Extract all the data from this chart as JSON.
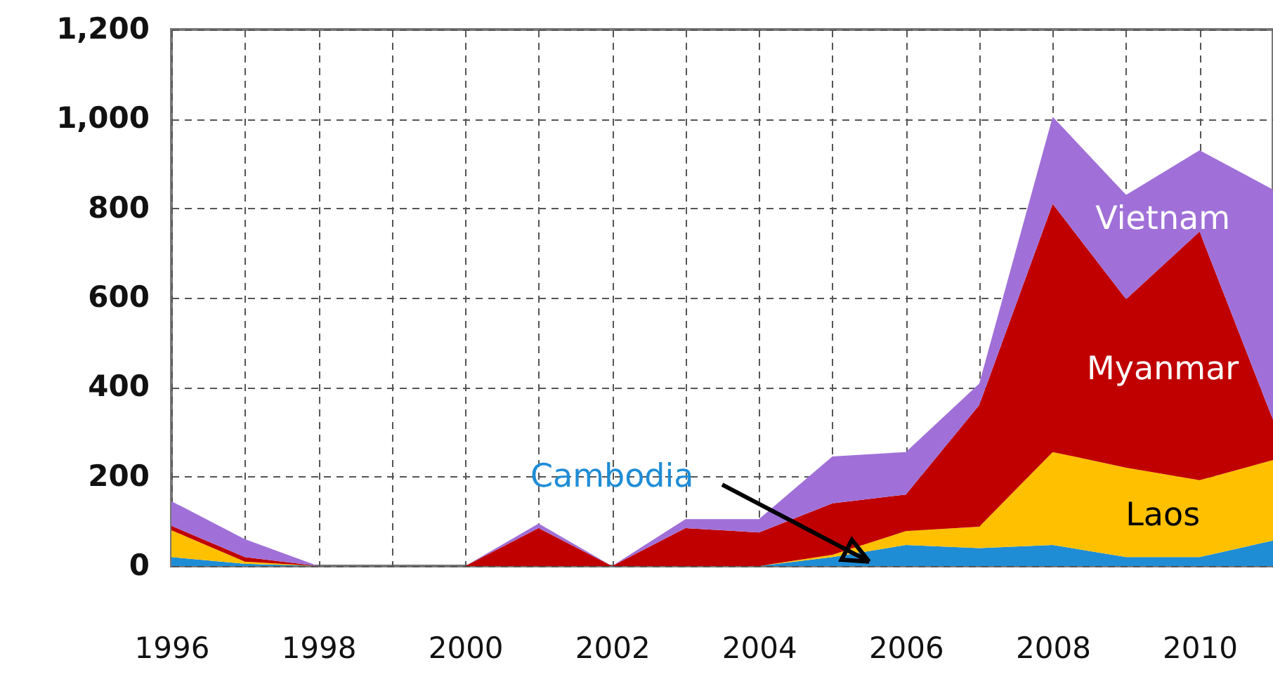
{
  "chart_data": {
    "type": "area",
    "stacked": true,
    "x": [
      1996,
      1997,
      1998,
      1999,
      2000,
      2001,
      2002,
      2003,
      2004,
      2005,
      2006,
      2007,
      2008,
      2009,
      2010,
      2011
    ],
    "series": [
      {
        "name": "Cambodia",
        "color": "#1f8dd6",
        "values": [
          20,
          5,
          0,
          0,
          0,
          0,
          0,
          0,
          0,
          20,
          47,
          40,
          47,
          20,
          20,
          57
        ]
      },
      {
        "name": "Laos",
        "color": "#ffc000",
        "values": [
          60,
          5,
          0,
          0,
          0,
          0,
          0,
          0,
          0,
          5,
          31,
          48,
          208,
          200,
          172,
          180
        ]
      },
      {
        "name": "Myanmar",
        "color": "#c00000",
        "values": [
          10,
          10,
          0,
          0,
          0,
          85,
          0,
          85,
          75,
          115,
          82,
          272,
          555,
          377,
          556,
          90
        ]
      },
      {
        "name": "Vietnam",
        "color": "#a070d8",
        "values": [
          55,
          40,
          0,
          0,
          0,
          10,
          0,
          20,
          30,
          105,
          95,
          48,
          195,
          233,
          182,
          515
        ]
      }
    ],
    "xlim": [
      1996,
      2011
    ],
    "xticks": [
      1996,
      {
        "value": 1997,
        "label": null
      },
      1998,
      {
        "value": 1999,
        "label": null
      },
      2000,
      {
        "value": 2001,
        "label": null
      },
      2002,
      {
        "value": 2003,
        "label": null
      },
      2004,
      {
        "value": 2005,
        "label": null
      },
      2006,
      {
        "value": 2007,
        "label": null
      },
      2008,
      {
        "value": 2009,
        "label": null
      },
      2010,
      {
        "value": 2011,
        "label": null
      }
    ],
    "ylim": [
      0,
      1200
    ],
    "yticks": [
      0,
      200,
      400,
      600,
      800,
      {
        "value": 1000,
        "label": "1,000"
      },
      {
        "value": 1200,
        "label": "1,200"
      }
    ],
    "grid": true,
    "legend": false
  }
}
